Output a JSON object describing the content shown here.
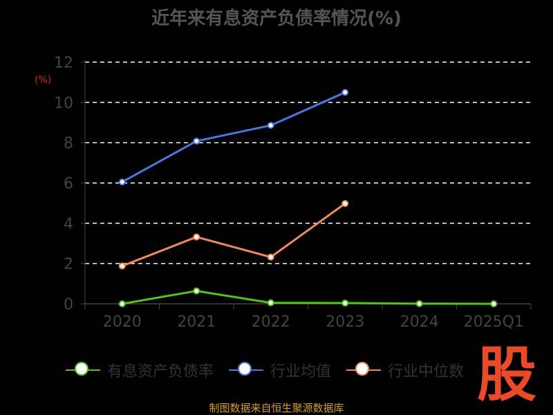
{
  "title": "近年来有息资产负债率情况(%)",
  "unit_label": "(%)",
  "source": "制图数据来自恒生聚源数据库",
  "stamp_text": "股",
  "colors": {
    "background": "#000000",
    "grid": "#ffffff",
    "axis_text": "#444444",
    "series_1": "#52c41a",
    "series_2": "#4a78e0",
    "series_3": "#f28a5a"
  },
  "chart_data": {
    "type": "line",
    "title": "近年来有息资产负债率情况(%)",
    "ylabel": "(%)",
    "xlabel": "",
    "categories": [
      "2020",
      "2021",
      "2022",
      "2023",
      "2024",
      "2025Q1"
    ],
    "ylim": [
      0,
      12
    ],
    "yticks": [
      0,
      2,
      4,
      6,
      8,
      10,
      12
    ],
    "grid": true,
    "legend_position": "bottom",
    "series": [
      {
        "name": "有息资产负债率",
        "color": "#52c41a",
        "values": [
          0.0,
          0.64,
          0.05,
          0.04,
          0.01,
          0.0
        ]
      },
      {
        "name": "行业均值",
        "color": "#4a78e0",
        "values": [
          6.05,
          8.08,
          8.86,
          10.5,
          null,
          null
        ]
      },
      {
        "name": "行业中位数",
        "color": "#f28a5a",
        "values": [
          1.88,
          3.32,
          2.32,
          4.98,
          null,
          null
        ]
      }
    ]
  }
}
